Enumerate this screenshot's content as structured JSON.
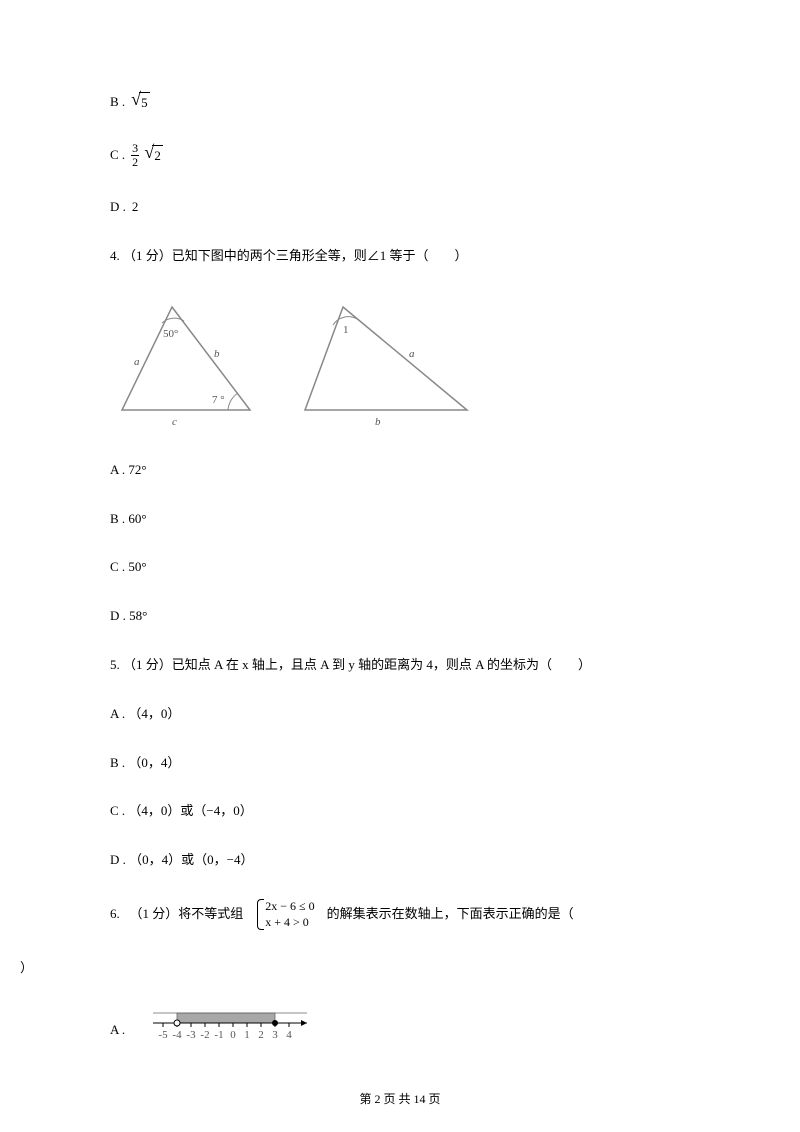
{
  "q3": {
    "optB_label": "B .",
    "optB_sqrt_arg": "5",
    "optC_label": "C .",
    "optC_frac_num": "3",
    "optC_frac_den": "2",
    "optC_sqrt_arg": "2",
    "optD_label": "D .",
    "optD_value": "2"
  },
  "q4": {
    "stem": "4. （1 分）已知下图中的两个三角形全等，则∠1 等于（　　）",
    "tri1": {
      "angle_top": "50°",
      "angle_right": "7 °",
      "side_a": "a",
      "side_b": "b",
      "side_c": "c"
    },
    "tri2": {
      "angle_top": "1",
      "side_a": "a",
      "side_b": "b"
    },
    "optA": "A . 72°",
    "optB": "B . 60°",
    "optC": "C . 50°",
    "optD": "D . 58°"
  },
  "q5": {
    "stem": "5. （1 分）已知点 A 在 x 轴上，且点 A 到 y 轴的距离为 4，则点 A 的坐标为（　　）",
    "optA": "A . （4，0）",
    "optB": "B . （0，4）",
    "optC": "C . （4，0）或（−4，0）",
    "optD": "D . （0，4）或（0，−4）"
  },
  "q6": {
    "stem_pre": "6. 　（1 分）将不等式组",
    "case1": "2x − 6 ≤ 0",
    "case2": "x + 4 > 0",
    "stem_post": "的解集表示在数轴上，下面表示正确的是（",
    "close_paren": "）",
    "optA_label": "A .",
    "numline": {
      "ticks": [
        "-5",
        "-4",
        "-3",
        "-2",
        "-1",
        "0",
        "1",
        "2",
        "3",
        "4"
      ],
      "shade_from": -4,
      "shade_to": 3,
      "open_at": -4,
      "closed_at": 3
    }
  },
  "footer": "第 2 页 共 14 页",
  "colors": {
    "text": "#000000",
    "figure_stroke": "#888888",
    "figure_text": "#666666",
    "shade_fill": "#a8a8a8"
  }
}
